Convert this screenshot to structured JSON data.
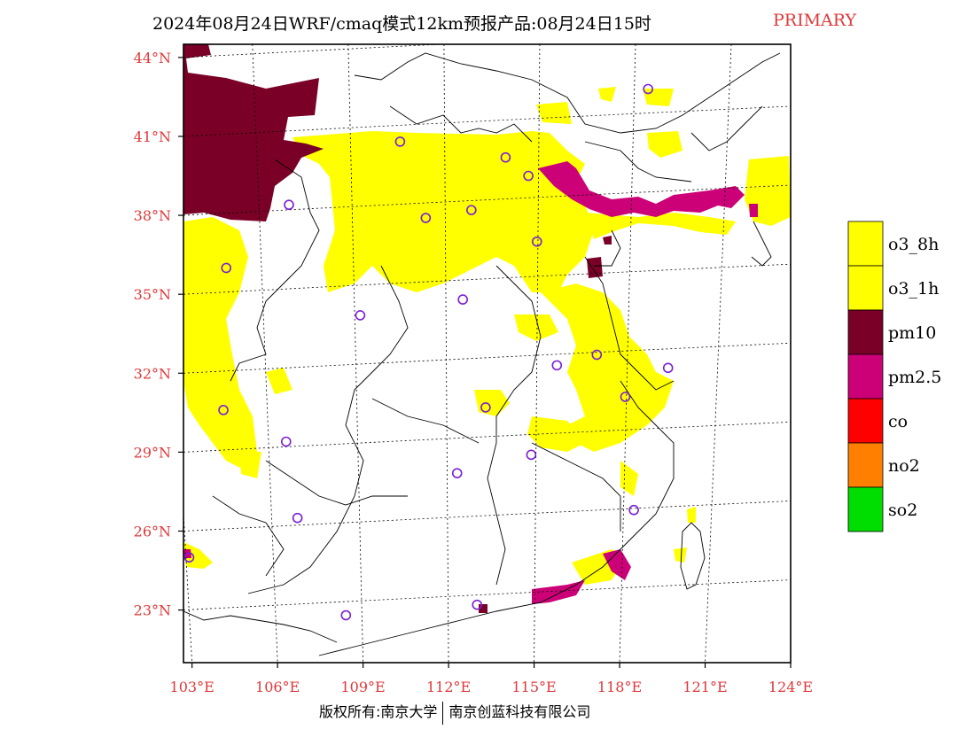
{
  "title": {
    "main": "2024年08月24日WRF/cmaq模式12km预报产品:08月24日15时",
    "tag": "PRIMARY"
  },
  "footer": {
    "left": "版权所有:南京大学",
    "right": "南京创蓝科技有限公司"
  },
  "colors": {
    "axis_label": "#e0383a",
    "o3_8h": "#ffff00",
    "o3_1h": "#ffff00",
    "pm10": "#7a0028",
    "pm25": "#cc0077",
    "co": "#ff0000",
    "no2": "#ff8000",
    "so2": "#00dd00",
    "station": "#7a1fd6"
  },
  "map": {
    "lat_labels": [
      "44°N",
      "41°N",
      "38°N",
      "35°N",
      "32°N",
      "29°N",
      "26°N",
      "23°N"
    ],
    "lat_values": [
      44,
      41,
      38,
      35,
      32,
      29,
      26,
      23
    ],
    "lon_labels": [
      "103°E",
      "106°E",
      "109°E",
      "112°E",
      "115°E",
      "118°E",
      "121°E",
      "124°E"
    ],
    "lon_values": [
      103,
      106,
      109,
      112,
      115,
      118,
      121,
      124
    ],
    "lat_range": [
      21,
      44.5
    ],
    "lon_range": [
      102.7,
      124
    ],
    "stations": [
      {
        "lon": 119,
        "lat": 42.8
      },
      {
        "lon": 110.3,
        "lat": 40.8
      },
      {
        "lon": 114.0,
        "lat": 40.2
      },
      {
        "lon": 114.8,
        "lat": 39.5
      },
      {
        "lon": 106.4,
        "lat": 38.4
      },
      {
        "lon": 111.2,
        "lat": 37.9
      },
      {
        "lon": 112.8,
        "lat": 38.2
      },
      {
        "lon": 115.1,
        "lat": 37.0
      },
      {
        "lon": 104.2,
        "lat": 36.0
      },
      {
        "lon": 112.5,
        "lat": 34.8
      },
      {
        "lon": 108.9,
        "lat": 34.2
      },
      {
        "lon": 117.2,
        "lat": 32.7
      },
      {
        "lon": 115.8,
        "lat": 32.3
      },
      {
        "lon": 119.7,
        "lat": 32.2
      },
      {
        "lon": 104.1,
        "lat": 30.6
      },
      {
        "lon": 113.3,
        "lat": 30.7
      },
      {
        "lon": 118.2,
        "lat": 31.1
      },
      {
        "lon": 106.3,
        "lat": 29.4
      },
      {
        "lon": 114.9,
        "lat": 28.9
      },
      {
        "lon": 112.3,
        "lat": 28.2
      },
      {
        "lon": 118.5,
        "lat": 26.8
      },
      {
        "lon": 106.7,
        "lat": 26.5
      },
      {
        "lon": 102.9,
        "lat": 25.0
      },
      {
        "lon": 113.0,
        "lat": 23.2
      },
      {
        "lon": 108.4,
        "lat": 22.8
      }
    ]
  },
  "legend": {
    "items": [
      {
        "label": "o3_8h",
        "key": "o3_8h"
      },
      {
        "label": "o3_1h",
        "key": "o3_1h"
      },
      {
        "label": "pm10",
        "key": "pm10"
      },
      {
        "label": "pm2.5",
        "key": "pm25"
      },
      {
        "label": "co",
        "key": "co"
      },
      {
        "label": "no2",
        "key": "no2"
      },
      {
        "label": "so2",
        "key": "so2"
      }
    ]
  }
}
